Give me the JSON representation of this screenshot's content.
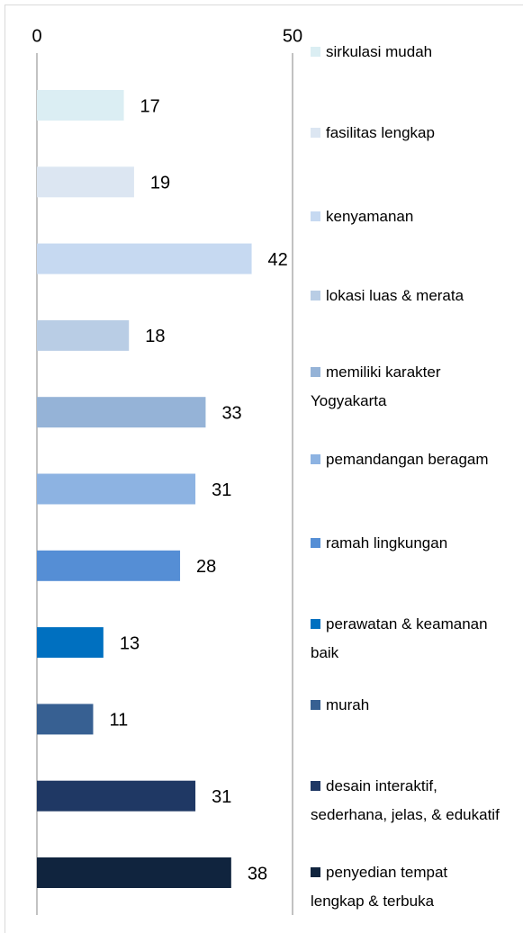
{
  "chart_data": {
    "type": "bar",
    "orientation": "horizontal",
    "categories": [
      "sirkulasi mudah",
      "fasilitas lengkap",
      "kenyamanan",
      "lokasi luas & merata",
      "memiliki karakter Yogyakarta",
      "pemandangan beragam",
      "ramah lingkungan",
      "perawatan & keamanan baik",
      "murah",
      "desain interaktif, sederhana, jelas, & edukatif",
      "penyedian tempat lengkap & terbuka"
    ],
    "values": [
      17,
      19,
      42,
      18,
      33,
      31,
      28,
      13,
      11,
      31,
      38
    ],
    "colors": [
      "#dbeef3",
      "#dce6f2",
      "#c6d9f1",
      "#b9cde5",
      "#95b3d7",
      "#8db3e2",
      "#558ed5",
      "#0070c0",
      "#376092",
      "#1f3864",
      "#10243e"
    ],
    "xlim": [
      0,
      50
    ],
    "xticks": [
      0,
      50
    ],
    "legend": "right"
  }
}
